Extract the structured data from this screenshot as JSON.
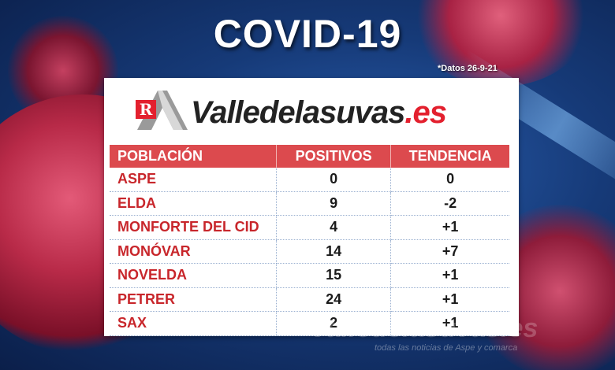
{
  "header": {
    "title": "COVID-19",
    "date_note": "*Datos 26-9-21"
  },
  "logo": {
    "icon_letter": "R",
    "brand": "Valledelasuvas",
    "tld": ".es"
  },
  "table": {
    "headers": [
      "POBLACIÓN",
      "POSITIVOS",
      "TENDENCIA"
    ],
    "rows": [
      {
        "municipio": "ASPE",
        "positivos": "0",
        "tendencia": "0"
      },
      {
        "municipio": "ELDA",
        "positivos": "9",
        "tendencia": "-2"
      },
      {
        "municipio": "MONFORTE DEL CID",
        "positivos": "4",
        "tendencia": "+1"
      },
      {
        "municipio": "MONÓVAR",
        "positivos": "14",
        "tendencia": "+7"
      },
      {
        "municipio": "NOVELDA",
        "positivos": "15",
        "tendencia": "+1"
      },
      {
        "municipio": "PETRER",
        "positivos": "24",
        "tendencia": "+1"
      },
      {
        "municipio": "SAX",
        "positivos": "2",
        "tendencia": "+1"
      }
    ]
  },
  "watermark": {
    "text": "valledelasuvas.es",
    "subtext": "todas las noticias de Aspe y comarca"
  },
  "colors": {
    "header_bg": "#dc4a4e",
    "municipio_text": "#c8262b",
    "tld_red": "#e3202e"
  }
}
